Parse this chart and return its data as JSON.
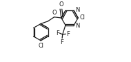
{
  "bg_color": "#ffffff",
  "line_color": "#1a1a1a",
  "figsize": [
    1.9,
    0.9
  ],
  "dpi": 100,
  "xlim": [
    -0.5,
    9.5
  ],
  "ylim": [
    -1.5,
    5.5
  ]
}
